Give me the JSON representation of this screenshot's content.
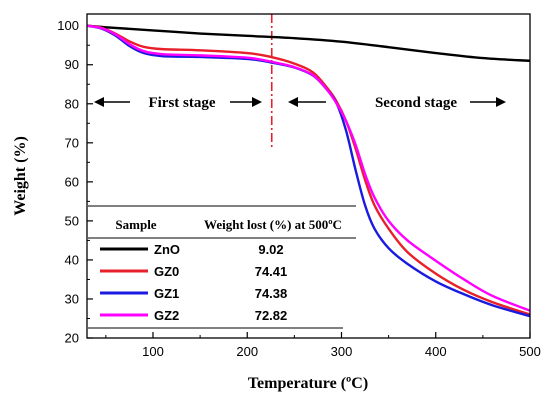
{
  "chart_data": {
    "type": "line",
    "xlabel": "Temperature (ºC)",
    "ylabel": "Weight (%)",
    "xlim": [
      30,
      500
    ],
    "ylim": [
      20,
      103
    ],
    "xticks": [
      "100",
      "200",
      "300",
      "400",
      "500"
    ],
    "yticks": [
      "20",
      "30",
      "40",
      "50",
      "60",
      "70",
      "80",
      "90",
      "100"
    ],
    "annotations": {
      "first_stage": "First stage",
      "second_stage": "Second stage",
      "divider_x": 226
    },
    "series": [
      {
        "name": "ZnO",
        "color": "#000000",
        "points": [
          [
            30,
            100
          ],
          [
            50,
            99.6
          ],
          [
            100,
            98.8
          ],
          [
            150,
            98.0
          ],
          [
            200,
            97.4
          ],
          [
            250,
            96.8
          ],
          [
            300,
            95.9
          ],
          [
            350,
            94.5
          ],
          [
            400,
            93.0
          ],
          [
            450,
            91.7
          ],
          [
            500,
            91.0
          ]
        ]
      },
      {
        "name": "GZ0",
        "color": "#e8202a",
        "points": [
          [
            30,
            100
          ],
          [
            45,
            99.5
          ],
          [
            60,
            98
          ],
          [
            75,
            96
          ],
          [
            90,
            94.6
          ],
          [
            110,
            94.0
          ],
          [
            150,
            93.7
          ],
          [
            200,
            93.0
          ],
          [
            225,
            92.0
          ],
          [
            250,
            90.3
          ],
          [
            270,
            88.0
          ],
          [
            285,
            84
          ],
          [
            295,
            80.5
          ],
          [
            305,
            75.5
          ],
          [
            315,
            68.5
          ],
          [
            325,
            60.5
          ],
          [
            335,
            54
          ],
          [
            350,
            48
          ],
          [
            370,
            42
          ],
          [
            400,
            36.5
          ],
          [
            430,
            32.3
          ],
          [
            460,
            29.2
          ],
          [
            500,
            26.0
          ]
        ]
      },
      {
        "name": "GZ1",
        "color": "#1a1ae0",
        "points": [
          [
            30,
            100
          ],
          [
            45,
            99.3
          ],
          [
            60,
            97.5
          ],
          [
            75,
            94.8
          ],
          [
            90,
            93.0
          ],
          [
            110,
            92.2
          ],
          [
            150,
            92.0
          ],
          [
            200,
            91.5
          ],
          [
            225,
            90.6
          ],
          [
            250,
            89.3
          ],
          [
            270,
            87.2
          ],
          [
            285,
            83.5
          ],
          [
            295,
            80
          ],
          [
            305,
            73
          ],
          [
            315,
            63
          ],
          [
            325,
            54
          ],
          [
            335,
            48
          ],
          [
            350,
            43
          ],
          [
            370,
            39
          ],
          [
            400,
            34.5
          ],
          [
            430,
            31.2
          ],
          [
            460,
            28.4
          ],
          [
            500,
            25.6
          ]
        ]
      },
      {
        "name": "GZ2",
        "color": "#ff00ff",
        "points": [
          [
            30,
            100
          ],
          [
            45,
            99.4
          ],
          [
            60,
            97.8
          ],
          [
            75,
            95.3
          ],
          [
            90,
            93.5
          ],
          [
            110,
            92.7
          ],
          [
            150,
            92.4
          ],
          [
            200,
            91.8
          ],
          [
            225,
            90.8
          ],
          [
            250,
            89.4
          ],
          [
            270,
            87.3
          ],
          [
            285,
            83.5
          ],
          [
            295,
            80.0
          ],
          [
            305,
            75.5
          ],
          [
            315,
            69.5
          ],
          [
            325,
            62
          ],
          [
            335,
            56
          ],
          [
            350,
            50
          ],
          [
            370,
            45
          ],
          [
            400,
            39.8
          ],
          [
            430,
            35.0
          ],
          [
            460,
            30.8
          ],
          [
            500,
            27.0
          ]
        ]
      }
    ],
    "table": {
      "header_sample": "Sample",
      "header_weight": "Weight lost (%) at 500ºC",
      "rows": [
        {
          "sample": "ZnO",
          "value": "9.02",
          "color": "#000000"
        },
        {
          "sample": "GZ0",
          "value": "74.41",
          "color": "#e8202a"
        },
        {
          "sample": "GZ1",
          "value": "74.38",
          "color": "#1a1ae0"
        },
        {
          "sample": "GZ2",
          "value": "72.82",
          "color": "#ff00ff"
        }
      ]
    }
  }
}
